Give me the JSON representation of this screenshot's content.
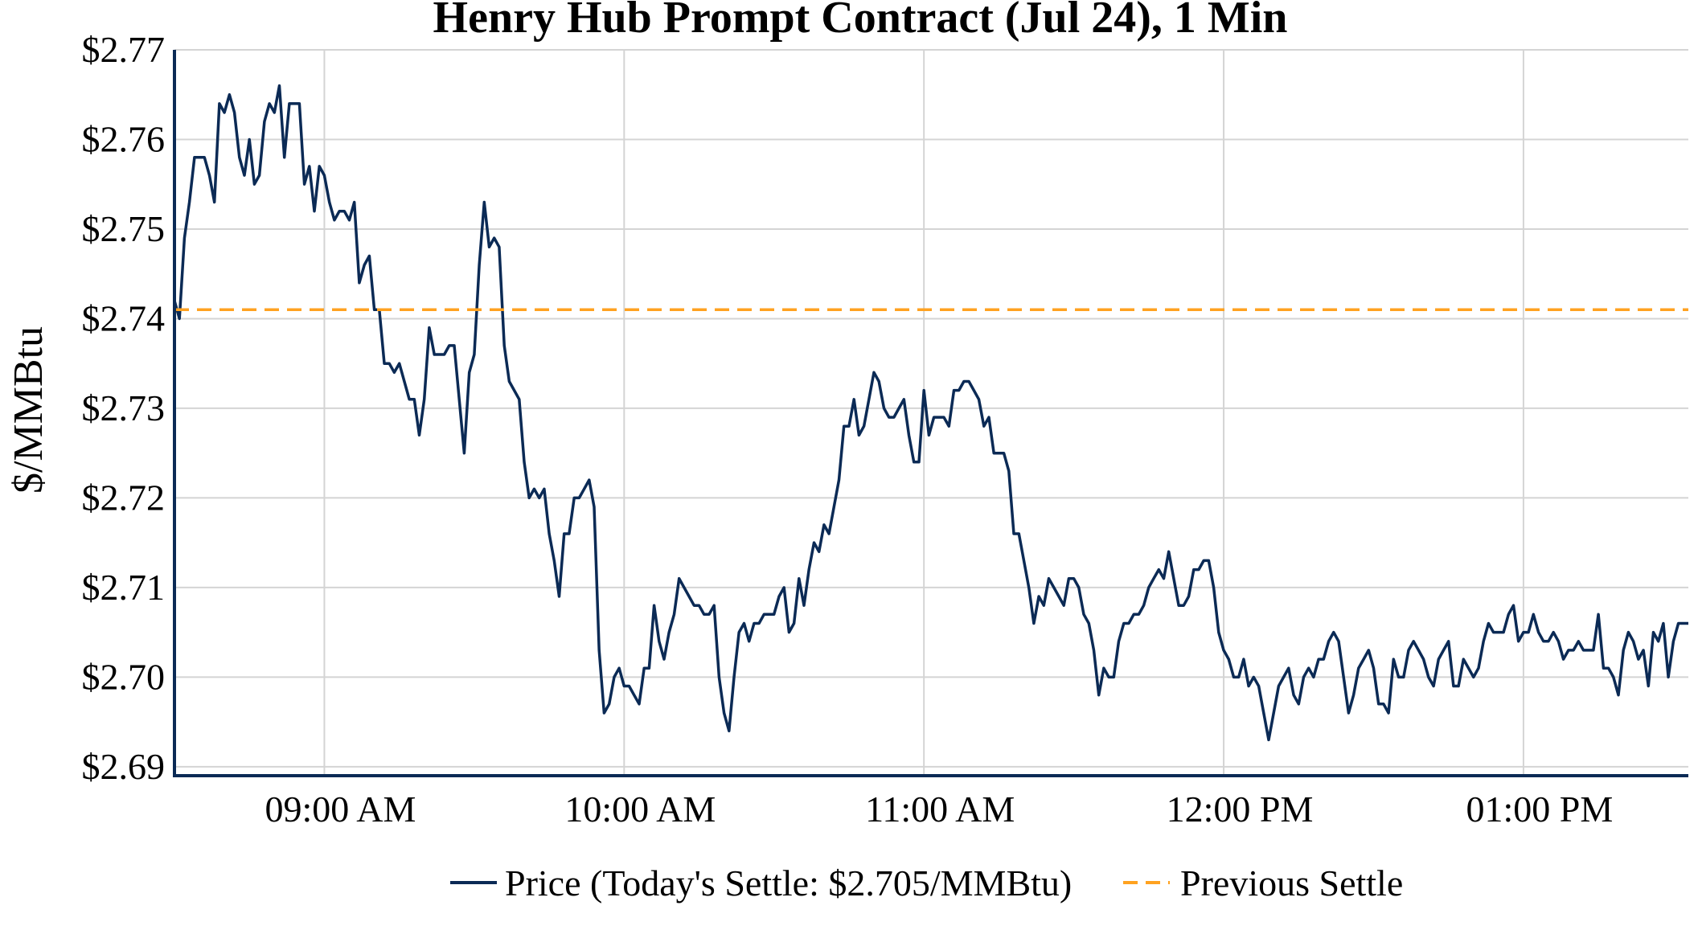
{
  "chart_data": {
    "type": "line",
    "title": "Henry Hub Prompt Contract (Jul 24), 1 Min",
    "ylabel": "$/MMBtu",
    "xlabel": "",
    "ylim": [
      2.689,
      2.77
    ],
    "yticks": [
      2.69,
      2.7,
      2.71,
      2.72,
      2.73,
      2.74,
      2.75,
      2.76,
      2.77
    ],
    "ytick_labels": [
      "$2.69",
      "$2.70",
      "$2.71",
      "$2.72",
      "$2.73",
      "$2.74",
      "$2.75",
      "$2.76",
      "$2.77"
    ],
    "xlim": [
      "08:30",
      "13:33"
    ],
    "xticks": [
      "09:00",
      "10:00",
      "11:00",
      "12:00",
      "13:00"
    ],
    "xtick_labels": [
      "09:00 AM",
      "10:00 AM",
      "11:00 AM",
      "12:00 PM",
      "01:00 PM"
    ],
    "grid": true,
    "legend_position": "bottom-center",
    "series": [
      {
        "name": "Price (Today's Settle: $2.705/MMBtu)",
        "color": "#0b2a55",
        "style": "solid",
        "x": [
          "08:30",
          "08:31",
          "08:32",
          "08:33",
          "08:34",
          "08:35",
          "08:36",
          "08:37",
          "08:38",
          "08:39",
          "08:40",
          "08:41",
          "08:42",
          "08:43",
          "08:44",
          "08:45",
          "08:46",
          "08:47",
          "08:48",
          "08:49",
          "08:50",
          "08:51",
          "08:52",
          "08:53",
          "08:54",
          "08:55",
          "08:56",
          "08:57",
          "08:58",
          "08:59",
          "09:00",
          "09:01",
          "09:02",
          "09:03",
          "09:04",
          "09:05",
          "09:06",
          "09:07",
          "09:08",
          "09:09",
          "09:10",
          "09:11",
          "09:12",
          "09:13",
          "09:14",
          "09:15",
          "09:16",
          "09:17",
          "09:18",
          "09:19",
          "09:20",
          "09:21",
          "09:22",
          "09:23",
          "09:24",
          "09:25",
          "09:26",
          "09:27",
          "09:28",
          "09:29",
          "09:30",
          "09:31",
          "09:32",
          "09:33",
          "09:34",
          "09:35",
          "09:36",
          "09:37",
          "09:38",
          "09:39",
          "09:40",
          "09:41",
          "09:42",
          "09:43",
          "09:44",
          "09:45",
          "09:46",
          "09:47",
          "09:48",
          "09:49",
          "09:50",
          "09:51",
          "09:52",
          "09:53",
          "09:54",
          "09:55",
          "09:56",
          "09:57",
          "09:58",
          "09:59",
          "10:00",
          "10:01",
          "10:02",
          "10:03",
          "10:04",
          "10:05",
          "10:06",
          "10:07",
          "10:08",
          "10:09",
          "10:10",
          "10:11",
          "10:12",
          "10:13",
          "10:14",
          "10:15",
          "10:16",
          "10:17",
          "10:18",
          "10:19",
          "10:20",
          "10:21",
          "10:22",
          "10:23",
          "10:24",
          "10:25",
          "10:26",
          "10:27",
          "10:28",
          "10:29",
          "10:30",
          "10:31",
          "10:32",
          "10:33",
          "10:34",
          "10:35",
          "10:36",
          "10:37",
          "10:38",
          "10:39",
          "10:40",
          "10:41",
          "10:42",
          "10:43",
          "10:44",
          "10:45",
          "10:46",
          "10:47",
          "10:48",
          "10:49",
          "10:50",
          "10:51",
          "10:52",
          "10:53",
          "10:54",
          "10:55",
          "10:56",
          "10:57",
          "10:58",
          "10:59",
          "11:00",
          "11:01",
          "11:02",
          "11:03",
          "11:04",
          "11:05",
          "11:06",
          "11:07",
          "11:08",
          "11:09",
          "11:10",
          "11:11",
          "11:12",
          "11:13",
          "11:14",
          "11:15",
          "11:16",
          "11:17",
          "11:18",
          "11:19",
          "11:20",
          "11:21",
          "11:22",
          "11:23",
          "11:24",
          "11:25",
          "11:26",
          "11:27",
          "11:28",
          "11:29",
          "11:30",
          "11:31",
          "11:32",
          "11:33",
          "11:34",
          "11:35",
          "11:36",
          "11:37",
          "11:38",
          "11:39",
          "11:40",
          "11:41",
          "11:42",
          "11:43",
          "11:44",
          "11:45",
          "11:46",
          "11:47",
          "11:48",
          "11:49",
          "11:50",
          "11:51",
          "11:52",
          "11:53",
          "11:54",
          "11:55",
          "11:56",
          "11:57",
          "11:58",
          "11:59",
          "12:00",
          "12:01",
          "12:02",
          "12:03",
          "12:04",
          "12:05",
          "12:06",
          "12:07",
          "12:08",
          "12:09",
          "12:10",
          "12:11",
          "12:12",
          "12:13",
          "12:14",
          "12:15",
          "12:16",
          "12:17",
          "12:18",
          "12:19",
          "12:20",
          "12:21",
          "12:22",
          "12:23",
          "12:24",
          "12:25",
          "12:26",
          "12:27",
          "12:28",
          "12:29",
          "12:30",
          "12:31",
          "12:32",
          "12:33",
          "12:34",
          "12:35",
          "12:36",
          "12:37",
          "12:38",
          "12:39",
          "12:40",
          "12:41",
          "12:42",
          "12:43",
          "12:44",
          "12:45",
          "12:46",
          "12:47",
          "12:48",
          "12:49",
          "12:50",
          "12:51",
          "12:52",
          "12:53",
          "12:54",
          "12:55",
          "12:56",
          "12:57",
          "12:58",
          "12:59",
          "13:00",
          "13:01",
          "13:02",
          "13:03",
          "13:04",
          "13:05",
          "13:06",
          "13:07",
          "13:08",
          "13:09",
          "13:10",
          "13:11",
          "13:12",
          "13:13",
          "13:14",
          "13:15",
          "13:16",
          "13:17",
          "13:18",
          "13:19",
          "13:20",
          "13:21",
          "13:22",
          "13:23",
          "13:24",
          "13:25",
          "13:26",
          "13:27",
          "13:28",
          "13:29",
          "13:30",
          "13:31",
          "13:32",
          "13:33"
        ],
        "y": [
          2.742,
          2.74,
          2.749,
          2.753,
          2.758,
          2.758,
          2.758,
          2.756,
          2.753,
          2.764,
          2.763,
          2.765,
          2.763,
          2.758,
          2.756,
          2.76,
          2.755,
          2.756,
          2.762,
          2.764,
          2.763,
          2.766,
          2.758,
          2.764,
          2.764,
          2.764,
          2.755,
          2.757,
          2.752,
          2.757,
          2.756,
          2.753,
          2.751,
          2.752,
          2.752,
          2.751,
          2.753,
          2.744,
          2.746,
          2.747,
          2.741,
          2.741,
          2.735,
          2.735,
          2.734,
          2.735,
          2.733,
          2.731,
          2.731,
          2.727,
          2.731,
          2.739,
          2.736,
          2.736,
          2.736,
          2.737,
          2.737,
          2.731,
          2.725,
          2.734,
          2.736,
          2.746,
          2.753,
          2.748,
          2.749,
          2.748,
          2.737,
          2.733,
          2.732,
          2.731,
          2.724,
          2.72,
          2.721,
          2.72,
          2.721,
          2.716,
          2.713,
          2.709,
          2.716,
          2.716,
          2.72,
          2.72,
          2.721,
          2.722,
          2.719,
          2.703,
          2.696,
          2.697,
          2.7,
          2.701,
          2.699,
          2.699,
          2.698,
          2.697,
          2.701,
          2.701,
          2.708,
          2.704,
          2.702,
          2.705,
          2.707,
          2.711,
          2.71,
          2.709,
          2.708,
          2.708,
          2.707,
          2.707,
          2.708,
          2.7,
          2.696,
          2.694,
          2.7,
          2.705,
          2.706,
          2.704,
          2.706,
          2.706,
          2.707,
          2.707,
          2.707,
          2.709,
          2.71,
          2.705,
          2.706,
          2.711,
          2.708,
          2.712,
          2.715,
          2.714,
          2.717,
          2.716,
          2.719,
          2.722,
          2.728,
          2.728,
          2.731,
          2.727,
          2.728,
          2.731,
          2.734,
          2.733,
          2.73,
          2.729,
          2.729,
          2.73,
          2.731,
          2.727,
          2.724,
          2.724,
          2.732,
          2.727,
          2.729,
          2.729,
          2.729,
          2.728,
          2.732,
          2.732,
          2.733,
          2.733,
          2.732,
          2.731,
          2.728,
          2.729,
          2.725,
          2.725,
          2.725,
          2.723,
          2.716,
          2.716,
          2.713,
          2.71,
          2.706,
          2.709,
          2.708,
          2.711,
          2.71,
          2.709,
          2.708,
          2.711,
          2.711,
          2.71,
          2.707,
          2.706,
          2.703,
          2.698,
          2.701,
          2.7,
          2.7,
          2.704,
          2.706,
          2.706,
          2.707,
          2.707,
          2.708,
          2.71,
          2.711,
          2.712,
          2.711,
          2.714,
          2.711,
          2.708,
          2.708,
          2.709,
          2.712,
          2.712,
          2.713,
          2.713,
          2.71,
          2.705,
          2.703,
          2.702,
          2.7,
          2.7,
          2.702,
          2.699,
          2.7,
          2.699,
          2.696,
          2.693,
          2.696,
          2.699,
          2.7,
          2.701,
          2.698,
          2.697,
          2.7,
          2.701,
          2.7,
          2.702,
          2.702,
          2.704,
          2.705,
          2.704,
          2.7,
          2.696,
          2.698,
          2.701,
          2.702,
          2.703,
          2.701,
          2.697,
          2.697,
          2.696,
          2.702,
          2.7,
          2.7,
          2.703,
          2.704,
          2.703,
          2.702,
          2.7,
          2.699,
          2.702,
          2.703,
          2.704,
          2.699,
          2.699,
          2.702,
          2.701,
          2.7,
          2.701,
          2.704,
          2.706,
          2.705,
          2.705,
          2.705,
          2.707,
          2.708,
          2.704,
          2.705,
          2.705,
          2.707,
          2.705,
          2.704,
          2.704,
          2.705,
          2.704,
          2.702,
          2.703,
          2.703,
          2.704,
          2.703,
          2.703,
          2.703,
          2.707,
          2.701,
          2.701,
          2.7,
          2.698,
          2.703,
          2.705,
          2.704,
          2.702,
          2.703,
          2.699,
          2.705,
          2.704,
          2.706,
          2.7,
          2.704,
          2.706,
          2.706,
          2.706
        ]
      },
      {
        "name": "Previous Settle",
        "color": "#ffa220",
        "style": "dashed",
        "y_constant": 2.741
      }
    ]
  }
}
